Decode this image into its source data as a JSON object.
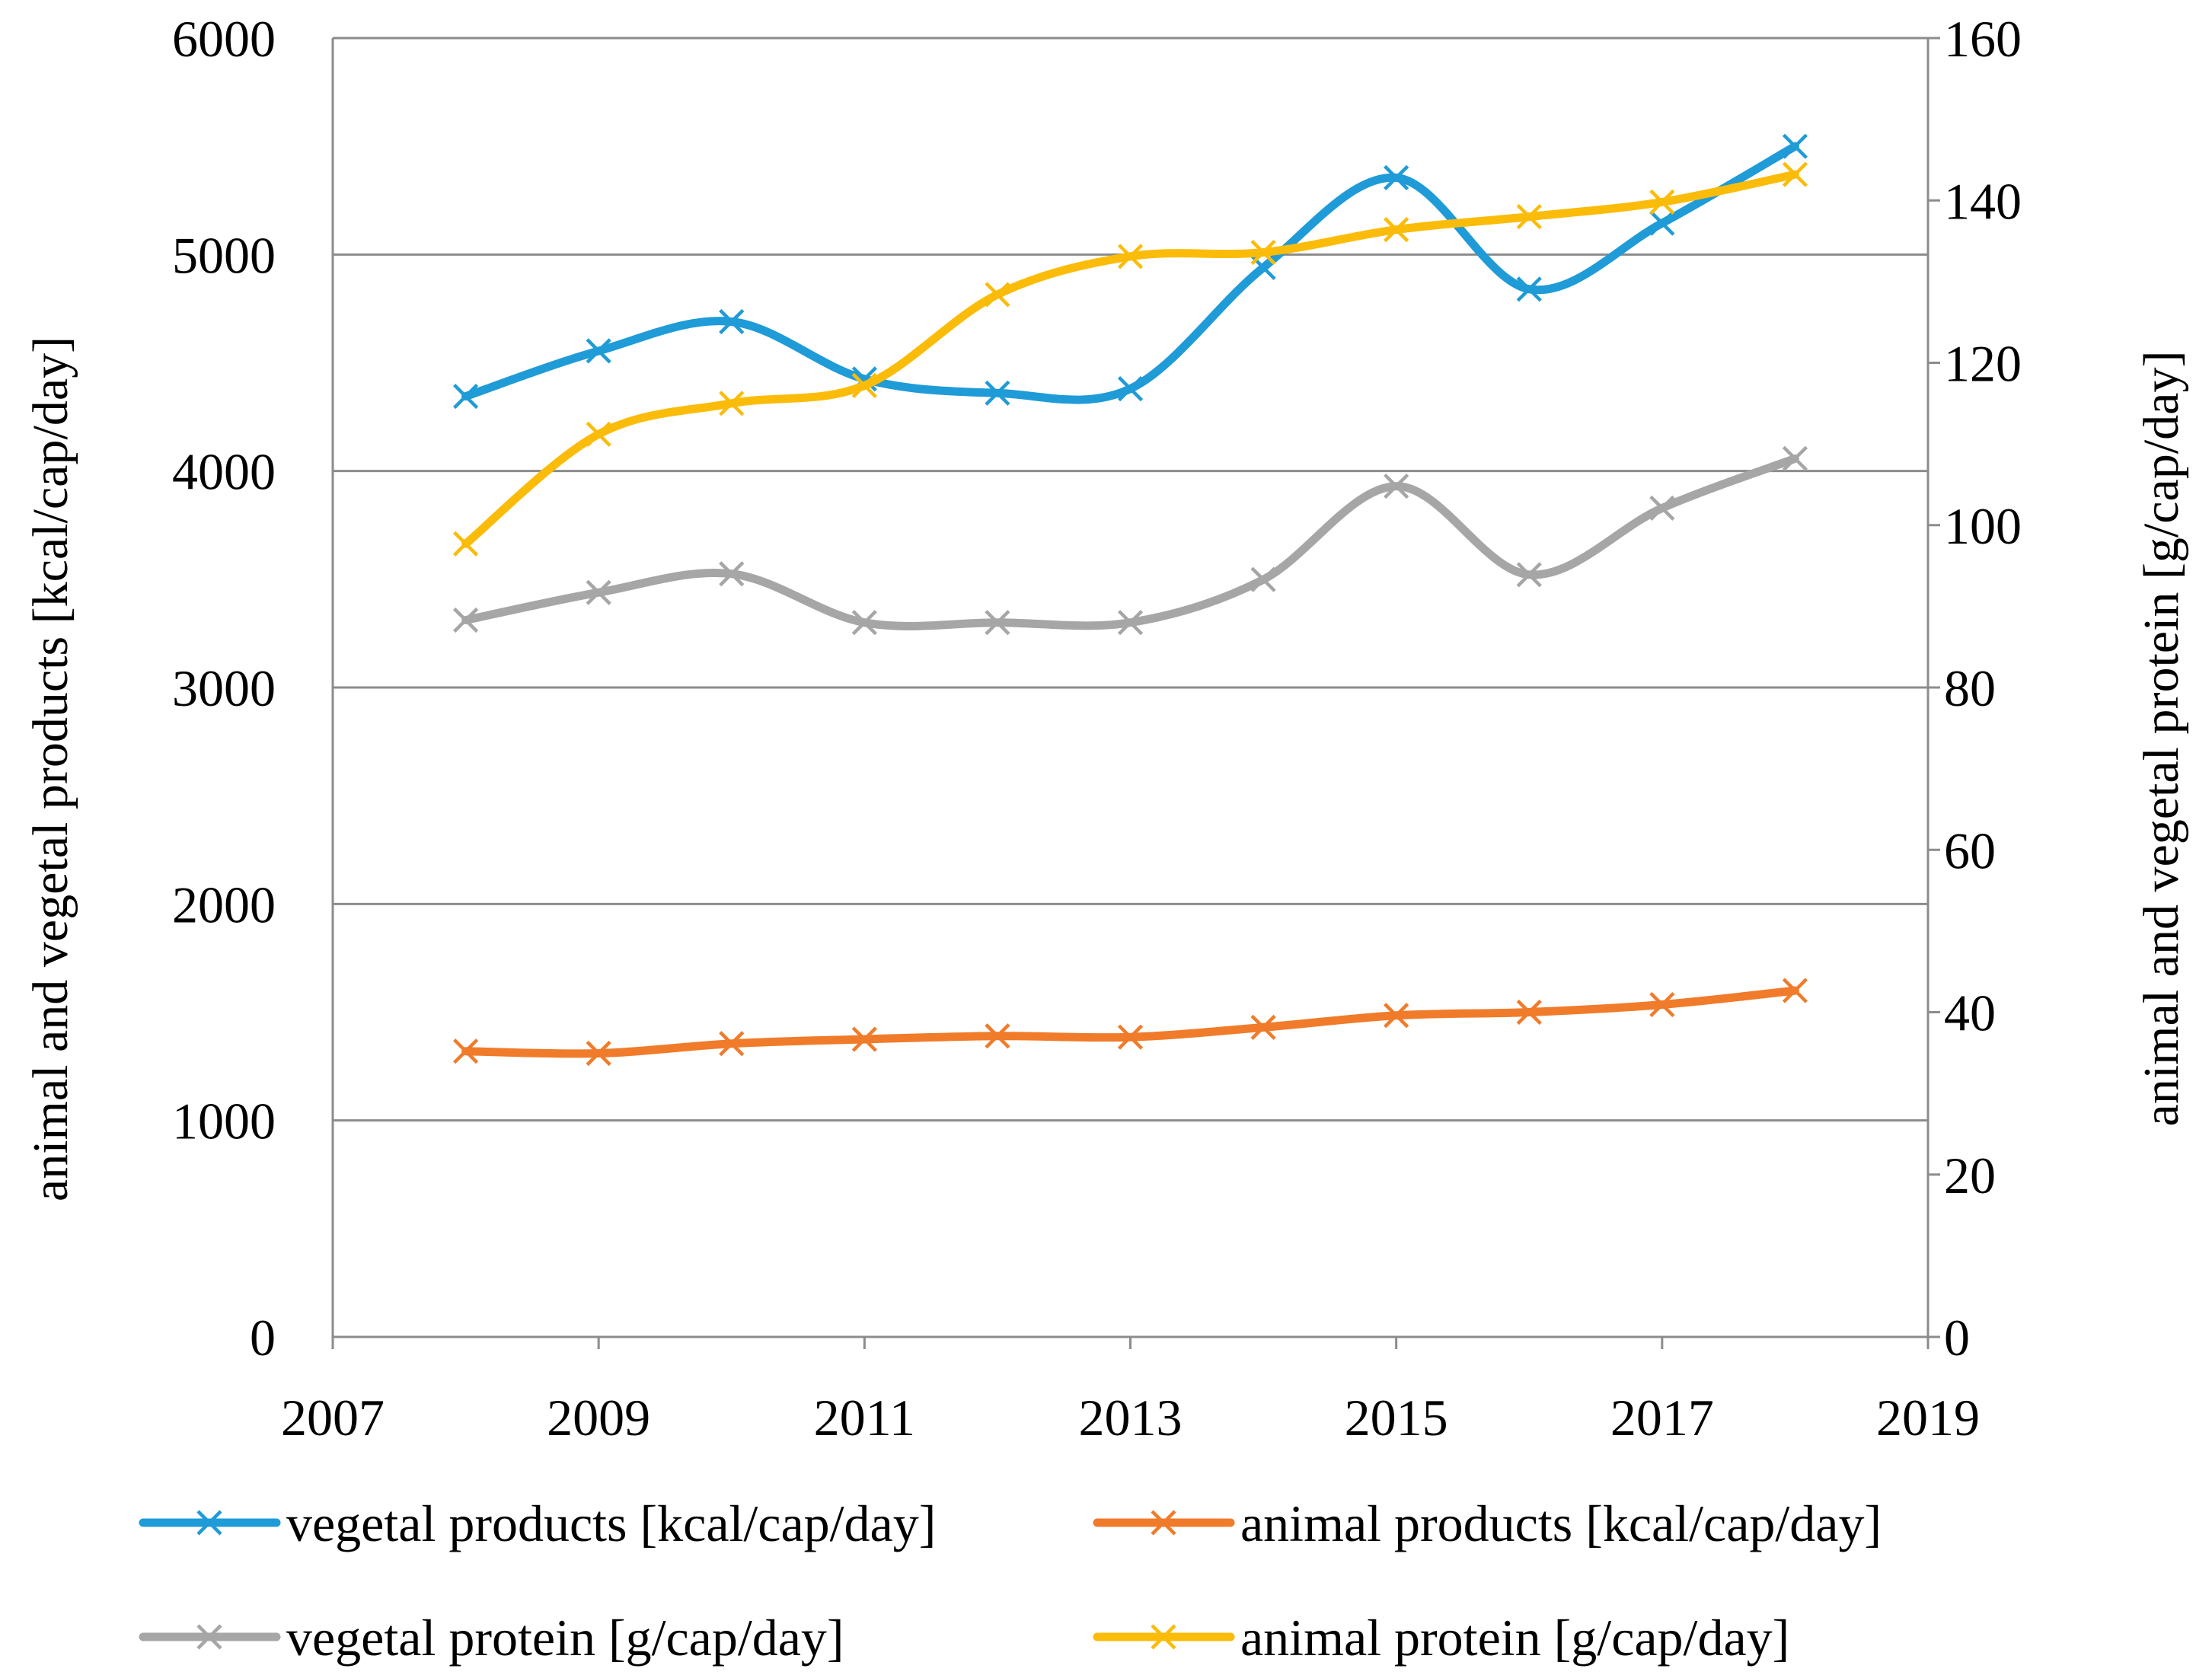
{
  "chart_data": {
    "type": "line",
    "title": "",
    "xlabel": "",
    "ylabel": "animal and vegetal products [kcal/cap/day]",
    "y2label": "animal and vegetal protein [g/cap/day]",
    "xlim": [
      2007,
      2019
    ],
    "ylim": [
      0,
      6000
    ],
    "y2lim": [
      0,
      160
    ],
    "x_ticks": [
      "2007",
      "2009",
      "2011",
      "2013",
      "2015",
      "2017",
      "2019"
    ],
    "y_ticks": [
      "0",
      "1000",
      "2000",
      "3000",
      "4000",
      "5000",
      "6000"
    ],
    "y2_ticks": [
      "0",
      "20",
      "40",
      "60",
      "80",
      "100",
      "120",
      "140",
      "160"
    ],
    "grid": true,
    "legend": "bottom",
    "x": [
      2008,
      2009,
      2010,
      2011,
      2012,
      2013,
      2014,
      2015,
      2016,
      2017,
      2018
    ],
    "series": [
      {
        "name": "vegetal products [kcal/cap/day]",
        "axis": "left",
        "color": "#1f9bd7",
        "values": [
          4345,
          4555,
          4690,
          4425,
          4360,
          4380,
          4940,
          5355,
          4840,
          5145,
          5500
        ]
      },
      {
        "name": "animal products [kcal/cap/day]",
        "axis": "left",
        "color": "#f07b2a",
        "values": [
          1320,
          1310,
          1355,
          1375,
          1390,
          1385,
          1430,
          1485,
          1500,
          1535,
          1600
        ]
      },
      {
        "name": "vegetal protein [g/cap/day]",
        "axis": "right",
        "color": "#a6a6a6",
        "values": [
          88.3,
          91.7,
          94.0,
          88.0,
          88.0,
          88.0,
          93.3,
          104.8,
          93.9,
          102.1,
          108.2
        ]
      },
      {
        "name": "animal protein [g/cap/day]",
        "axis": "right",
        "color": "#fbbc09",
        "values": [
          97.7,
          111.2,
          115.0,
          117.2,
          128.4,
          133.1,
          133.6,
          136.4,
          138.0,
          139.8,
          143.2
        ]
      }
    ]
  }
}
